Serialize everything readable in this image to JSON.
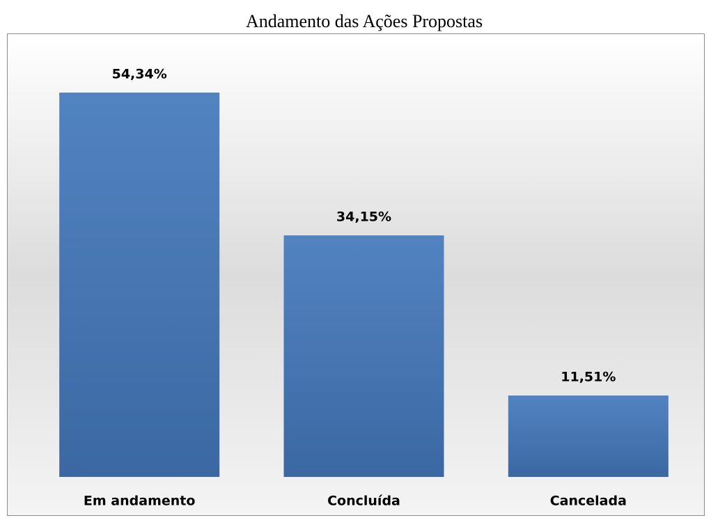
{
  "chart_data": {
    "type": "bar",
    "title": "Andamento das Ações Propostas",
    "categories": [
      "Em andamento",
      "Concluída",
      "Cancelada"
    ],
    "values": [
      54.34,
      34.15,
      11.51
    ],
    "value_labels": [
      "54,34%",
      "34,15%",
      "11,51%"
    ],
    "color": "#4a78b4"
  }
}
